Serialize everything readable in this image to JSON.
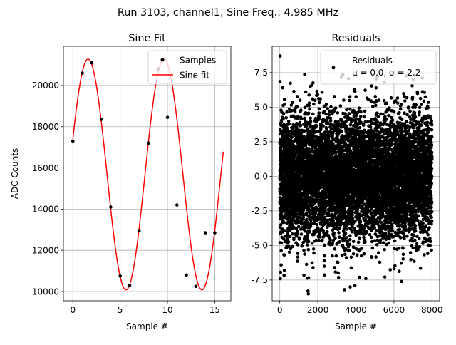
{
  "figure": {
    "suptitle": "Run 3103, channel1, Sine Freq.: 4.985 MHz"
  },
  "chart_data": [
    {
      "type": "line",
      "title": "Sine Fit",
      "xlabel": "Sample #",
      "ylabel": "ADC Counts",
      "xlim": [
        -1.0,
        16.7
      ],
      "ylim": [
        9550,
        21900
      ],
      "xticks": [
        0,
        5,
        10,
        15
      ],
      "yticks": [
        10000,
        12000,
        14000,
        16000,
        18000,
        20000
      ],
      "grid": true,
      "legend": {
        "placement": "upper right",
        "entries": [
          {
            "label": "Samples",
            "marker": "point",
            "color": "#000000"
          },
          {
            "label": "Sine fit",
            "marker": "line",
            "color": "#ff0000"
          }
        ]
      },
      "series": [
        {
          "name": "Samples",
          "kind": "scatter",
          "color": "#000000",
          "x": [
            0,
            1,
            2,
            3,
            4,
            5,
            6,
            7,
            8,
            9,
            10,
            11,
            12,
            13,
            14,
            15
          ],
          "y": [
            17300,
            20600,
            21100,
            18350,
            14100,
            10750,
            10300,
            12950,
            17200,
            20800,
            18450,
            14200,
            10800,
            10250,
            12850,
            12850
          ]
        },
        {
          "name": "Sine fit",
          "kind": "line",
          "color": "#ff0000",
          "x_range": [
            0,
            15.9
          ],
          "offset": 15680,
          "amplitude": 5600,
          "period": 8.023,
          "phase_shift": 0.4
        }
      ]
    },
    {
      "type": "scatter",
      "title": "Residuals",
      "xlabel": "Sample #",
      "ylabel": "",
      "xlim": [
        -400,
        8400
      ],
      "ylim": [
        -9.0,
        9.4
      ],
      "xticks": [
        0,
        2000,
        4000,
        6000,
        8000
      ],
      "yticks": [
        -7.5,
        -5.0,
        -2.5,
        0.0,
        2.5,
        5.0,
        7.5
      ],
      "grid": true,
      "legend": {
        "placement": "upper right",
        "entries": [
          {
            "label": "Residuals",
            "marker": "point",
            "color": "#000000"
          }
        ],
        "extra_line": "μ = 0.0, σ = 2.2"
      },
      "series": [
        {
          "name": "Residuals",
          "color": "#000000",
          "n_points": 8000,
          "x_range": [
            0,
            7999
          ],
          "mean": 0.0,
          "std": 2.2,
          "outliers": [
            {
              "x": 20,
              "y": 8.7
            },
            {
              "x": 1500,
              "y": -8.5
            },
            {
              "x": 1480,
              "y": -8.3
            },
            {
              "x": 3400,
              "y": -8.2
            },
            {
              "x": 3700,
              "y": -8.0
            },
            {
              "x": 3950,
              "y": -7.9
            },
            {
              "x": 6400,
              "y": -7.6
            },
            {
              "x": 30,
              "y": -7.4
            },
            {
              "x": 5500,
              "y": 6.8
            },
            {
              "x": 1600,
              "y": 6.5
            }
          ]
        }
      ]
    }
  ]
}
